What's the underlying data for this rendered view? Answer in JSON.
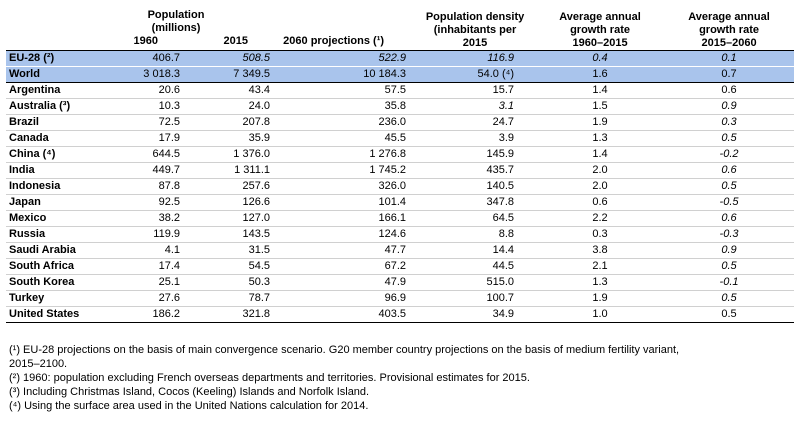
{
  "headers": {
    "population_group": "Population\n(millions)",
    "col_1960": "1960",
    "col_2015": "2015",
    "col_2060": "2060 projections (¹)",
    "density": "Population density\n(inhabitants per\n2015",
    "growth1": "Average annual\ngrowth rate\n1960–2015",
    "growth2": "Average annual\ngrowth rate\n2015–2060"
  },
  "rows": [
    {
      "country": "EU-28 (²)",
      "v1960": "406.7",
      "v2015": "508.5",
      "v2060": "522.9",
      "density": "116.9",
      "g1": "0.4",
      "g2": "0.1",
      "aggregate": true,
      "italic": [
        "v2015",
        "v2060",
        "density",
        "g1",
        "g2"
      ]
    },
    {
      "country": "World",
      "v1960": "3 018.3",
      "v2015": "7 349.5",
      "v2060": "10 184.3",
      "density": "54.0 (⁴)",
      "g1": "1.6",
      "g2": "0.7",
      "aggregate": true,
      "italic": []
    },
    {
      "country": "Argentina",
      "v1960": "20.6",
      "v2015": "43.4",
      "v2060": "57.5",
      "density": "15.7",
      "g1": "1.4",
      "g2": "0.6",
      "italic": []
    },
    {
      "country": "Australia (³)",
      "v1960": "10.3",
      "v2015": "24.0",
      "v2060": "35.8",
      "density": "3.1",
      "g1": "1.5",
      "g2": "0.9",
      "italic": [
        "density",
        "g2"
      ]
    },
    {
      "country": "Brazil",
      "v1960": "72.5",
      "v2015": "207.8",
      "v2060": "236.0",
      "density": "24.7",
      "g1": "1.9",
      "g2": "0.3",
      "italic": [
        "g2"
      ]
    },
    {
      "country": "Canada",
      "v1960": "17.9",
      "v2015": "35.9",
      "v2060": "45.5",
      "density": "3.9",
      "g1": "1.3",
      "g2": "0.5",
      "italic": [
        "g2"
      ]
    },
    {
      "country": "China (⁴)",
      "v1960": "644.5",
      "v2015": "1 376.0",
      "v2060": "1 276.8",
      "density": "145.9",
      "g1": "1.4",
      "g2": "-0.2",
      "italic": [
        "g2"
      ]
    },
    {
      "country": "India",
      "v1960": "449.7",
      "v2015": "1 311.1",
      "v2060": "1 745.2",
      "density": "435.7",
      "g1": "2.0",
      "g2": "0.6",
      "italic": [
        "g2"
      ]
    },
    {
      "country": "Indonesia",
      "v1960": "87.8",
      "v2015": "257.6",
      "v2060": "326.0",
      "density": "140.5",
      "g1": "2.0",
      "g2": "0.5",
      "italic": [
        "g2"
      ]
    },
    {
      "country": "Japan",
      "v1960": "92.5",
      "v2015": "126.6",
      "v2060": "101.4",
      "density": "347.8",
      "g1": "0.6",
      "g2": "-0.5",
      "italic": [
        "g2"
      ]
    },
    {
      "country": "Mexico",
      "v1960": "38.2",
      "v2015": "127.0",
      "v2060": "166.1",
      "density": "64.5",
      "g1": "2.2",
      "g2": "0.6",
      "italic": [
        "g2"
      ]
    },
    {
      "country": "Russia",
      "v1960": "119.9",
      "v2015": "143.5",
      "v2060": "124.6",
      "density": "8.8",
      "g1": "0.3",
      "g2": "-0.3",
      "italic": [
        "g2"
      ]
    },
    {
      "country": "Saudi Arabia",
      "v1960": "4.1",
      "v2015": "31.5",
      "v2060": "47.7",
      "density": "14.4",
      "g1": "3.8",
      "g2": "0.9",
      "italic": [
        "g2"
      ]
    },
    {
      "country": "South Africa",
      "v1960": "17.4",
      "v2015": "54.5",
      "v2060": "67.2",
      "density": "44.5",
      "g1": "2.1",
      "g2": "0.5",
      "italic": [
        "g2"
      ]
    },
    {
      "country": "South Korea",
      "v1960": "25.1",
      "v2015": "50.3",
      "v2060": "47.9",
      "density": "515.0",
      "g1": "1.3",
      "g2": "-0.1",
      "italic": [
        "g2"
      ]
    },
    {
      "country": "Turkey",
      "v1960": "27.6",
      "v2015": "78.7",
      "v2060": "96.9",
      "density": "100.7",
      "g1": "1.9",
      "g2": "0.5",
      "italic": [
        "g2"
      ]
    },
    {
      "country": "United States",
      "v1960": "186.2",
      "v2015": "321.8",
      "v2060": "403.5",
      "density": "34.9",
      "g1": "1.0",
      "g2": "0.5",
      "italic": []
    }
  ],
  "notes": [
    "(¹) EU-28 projections on the basis of main convergence scenario. G20 member country projections on the basis of medium fertility variant,\n2015–2100.",
    "(²) 1960: population excluding French overseas departments and territories. Provisional estimates for 2015.",
    "(³) Including Christmas Island, Cocos (Keeling) Islands and Norfolk Island.",
    "(⁴) Using the surface area used in the United Nations calculation for 2014."
  ]
}
